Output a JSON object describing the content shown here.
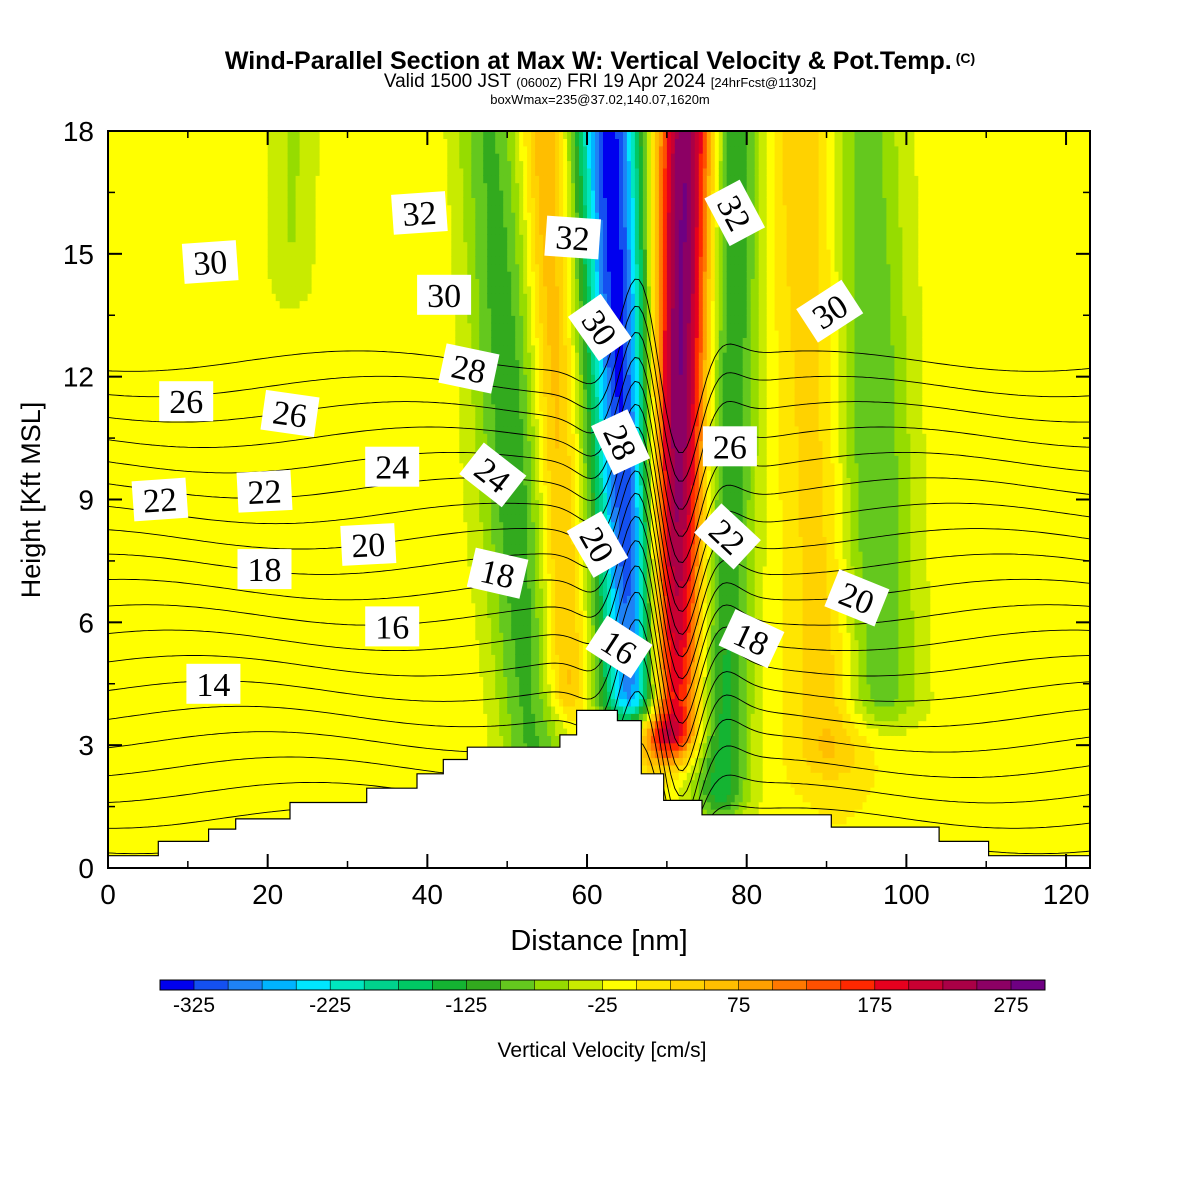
{
  "title": "Wind-Parallel Section at Max W: Vertical Velocity & Pot.Temp.",
  "title_mark": "(C)",
  "subtitle": {
    "valid": "Valid 1500 JST",
    "utc": "(0600Z)",
    "date": "FRI 19 Apr 2024",
    "fcst": "[24hrFcst@1130z]"
  },
  "box_info": "boxWmax=235@37.02,140.07,1620m",
  "chart_data": {
    "type": "heatmap",
    "xlabel": "Distance [nm]",
    "ylabel": "Height [Kft MSL]",
    "xlim": [
      0,
      123
    ],
    "ylim": [
      0,
      18
    ],
    "x_ticks": [
      "0",
      "20",
      "40",
      "60",
      "80",
      "100",
      "120"
    ],
    "y_ticks": [
      "0",
      "3",
      "6",
      "9",
      "12",
      "15",
      "18"
    ],
    "colorbar": {
      "label": "Vertical Velocity [cm/s]",
      "min": -350,
      "step": 25,
      "tick_labels": [
        "-325",
        "-225",
        "-125",
        "-25",
        "75",
        "175",
        "275"
      ],
      "colors": [
        "#0000ee",
        "#1450f0",
        "#1e82f5",
        "#00b4ff",
        "#00e6ff",
        "#00e6be",
        "#00d28c",
        "#00c864",
        "#14b432",
        "#32aa1e",
        "#64c81e",
        "#96dc00",
        "#c8eb00",
        "#ffff00",
        "#ffe600",
        "#ffd200",
        "#ffbe00",
        "#ffa000",
        "#ff7800",
        "#ff5000",
        "#ff2800",
        "#e6001e",
        "#c80032",
        "#aa0046",
        "#8c0064",
        "#6e0082"
      ]
    },
    "w_field_features": [
      {
        "x": 65,
        "top": 18,
        "bottom": 4.3,
        "width": 3.0,
        "lean": -0.25,
        "value": -330
      },
      {
        "x": 71,
        "top": 18,
        "bottom": 3.5,
        "width": 2.6,
        "lean": 0.15,
        "value": 300
      },
      {
        "x": 77.5,
        "top": 18,
        "bottom": 2.0,
        "width": 2.5,
        "lean": 0.1,
        "value": -125
      },
      {
        "x": 51,
        "top": 18,
        "bottom": 2.8,
        "width": 3.0,
        "lean": -0.35,
        "value": -100
      },
      {
        "x": 56.5,
        "top": 18,
        "bottom": 4.5,
        "width": 2.0,
        "lean": -0.2,
        "value": 90
      },
      {
        "x": 96,
        "top": 17,
        "bottom": 4.3,
        "width": 3.5,
        "lean": -0.15,
        "value": -85
      },
      {
        "x": 89,
        "top": 18,
        "bottom": 3.0,
        "width": 3.0,
        "lean": -0.2,
        "value": 60
      },
      {
        "x": 23,
        "top": 18,
        "bottom": 14.5,
        "width": 2.0,
        "lean": 0.0,
        "value": -40
      }
    ],
    "terrain": {
      "x": [
        0,
        6.3,
        12.6,
        16,
        22.8,
        32.4,
        38.7,
        42,
        45,
        56.6,
        58.7,
        61.1,
        63.8,
        66.8,
        69.6,
        74.4,
        90.6,
        104.1,
        110.3,
        123
      ],
      "height": [
        0.3,
        0.65,
        0.95,
        1.2,
        1.6,
        1.95,
        2.3,
        2.65,
        2.95,
        3.25,
        3.85,
        3.85,
        3.6,
        2.3,
        1.65,
        1.3,
        1.0,
        0.65,
        0.3,
        0.3
      ]
    },
    "theta_contours": {
      "unit": "C",
      "levels_min": 13,
      "levels_max": 32,
      "level_step": 1,
      "labels": [
        {
          "text": "32",
          "x": 39,
          "y": 16.0,
          "angle": -4
        },
        {
          "text": "32",
          "x": 58.2,
          "y": 15.4,
          "angle": 4
        },
        {
          "text": "32",
          "x": 78.5,
          "y": 16.0,
          "angle": 62
        },
        {
          "text": "30",
          "x": 12.8,
          "y": 14.8,
          "angle": -4
        },
        {
          "text": "30",
          "x": 42.1,
          "y": 14.0,
          "angle": 0
        },
        {
          "text": "30",
          "x": 61.6,
          "y": 13.2,
          "angle": 55
        },
        {
          "text": "30",
          "x": 90.4,
          "y": 13.6,
          "angle": -33
        },
        {
          "text": "28",
          "x": 45.2,
          "y": 12.2,
          "angle": 12
        },
        {
          "text": "28",
          "x": 64.2,
          "y": 10.4,
          "angle": 65
        },
        {
          "text": "26",
          "x": 9.8,
          "y": 11.4,
          "angle": 0
        },
        {
          "text": "26",
          "x": 22.8,
          "y": 11.1,
          "angle": 8
        },
        {
          "text": "26",
          "x": 77.9,
          "y": 10.3,
          "angle": 0
        },
        {
          "text": "24",
          "x": 35.6,
          "y": 9.8,
          "angle": 0
        },
        {
          "text": "24",
          "x": 48.2,
          "y": 9.6,
          "angle": 38
        },
        {
          "text": "22",
          "x": 6.5,
          "y": 9.0,
          "angle": -4
        },
        {
          "text": "22",
          "x": 19.6,
          "y": 9.2,
          "angle": -3
        },
        {
          "text": "22",
          "x": 77.6,
          "y": 8.1,
          "angle": 43
        },
        {
          "text": "20",
          "x": 32.6,
          "y": 7.9,
          "angle": -3
        },
        {
          "text": "20",
          "x": 61.3,
          "y": 7.9,
          "angle": 60
        },
        {
          "text": "20",
          "x": 93.8,
          "y": 6.6,
          "angle": 22
        },
        {
          "text": "18",
          "x": 19.6,
          "y": 7.3,
          "angle": 0
        },
        {
          "text": "18",
          "x": 48.8,
          "y": 7.2,
          "angle": 13
        },
        {
          "text": "18",
          "x": 80.6,
          "y": 5.6,
          "angle": 25
        },
        {
          "text": "16",
          "x": 35.6,
          "y": 5.9,
          "angle": 0
        },
        {
          "text": "16",
          "x": 64.0,
          "y": 5.4,
          "angle": 33
        },
        {
          "text": "14",
          "x": 13.2,
          "y": 4.5,
          "angle": 0
        }
      ]
    }
  }
}
